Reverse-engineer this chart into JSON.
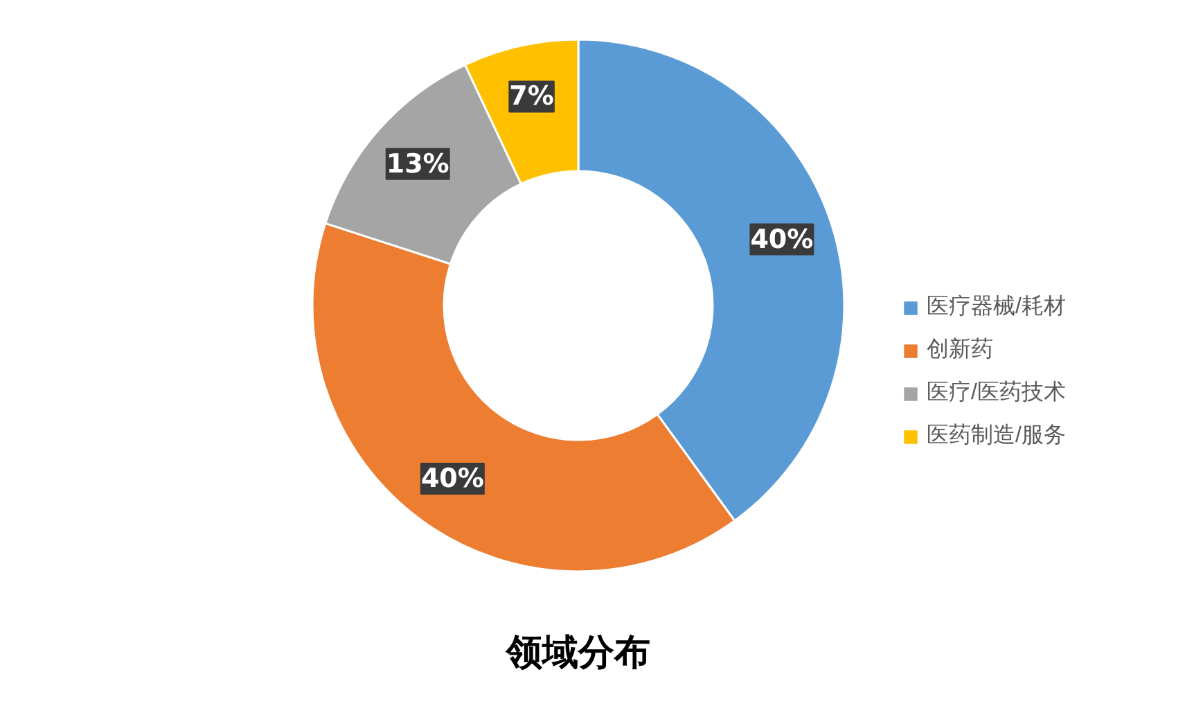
{
  "chart_data": {
    "type": "donut",
    "title": "领域分布",
    "categories": [
      "医疗器械/耗材",
      "创新药",
      "医疗/医药技术",
      "医药制造/服务"
    ],
    "values": [
      40,
      40,
      13,
      7
    ],
    "colors": [
      "#5b9bd5",
      "#ed7d31",
      "#a5a5a5",
      "#ffc000"
    ],
    "value_labels": [
      "40%",
      "40%",
      "13%",
      "7%"
    ],
    "legend": "right"
  }
}
